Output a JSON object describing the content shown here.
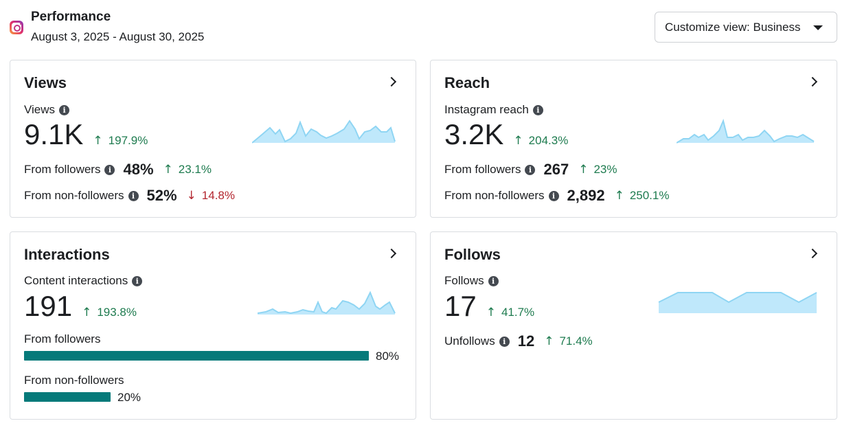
{
  "header": {
    "title": "Performance",
    "date_range": "August 3, 2025 - August 30, 2025",
    "customize_label": "Customize view: Business"
  },
  "colors": {
    "accent_green": "#1e7b4f",
    "accent_red": "#b3262f",
    "bar_teal": "#067a7a",
    "spark_fill": "#bfe8fb",
    "spark_line": "#8fd5f3"
  },
  "cards": {
    "views": {
      "title": "Views",
      "metric_label": "Views",
      "value": "9.1K",
      "change": "197.9%",
      "rows": [
        {
          "label": "From followers",
          "value": "48%",
          "change": "23.1%",
          "direction": "up"
        },
        {
          "label": "From non-followers",
          "value": "52%",
          "change": "14.8%",
          "direction": "down"
        }
      ]
    },
    "reach": {
      "title": "Reach",
      "metric_label": "Instagram reach",
      "value": "3.2K",
      "change": "204.3%",
      "rows": [
        {
          "label": "From followers",
          "value": "267",
          "change": "23%",
          "direction": "up"
        },
        {
          "label": "From non-followers",
          "value": "2,892",
          "change": "250.1%",
          "direction": "up"
        }
      ]
    },
    "interactions": {
      "title": "Interactions",
      "metric_label": "Content interactions",
      "value": "191",
      "change": "193.8%",
      "bars": [
        {
          "label": "From followers",
          "pct": "80%",
          "fraction": 0.8
        },
        {
          "label": "From non-followers",
          "pct": "20%",
          "fraction": 0.2
        }
      ]
    },
    "follows": {
      "title": "Follows",
      "metric_label": "Follows",
      "value": "17",
      "change": "41.7%",
      "rows": [
        {
          "label": "Unfollows",
          "value": "12",
          "change": "71.4%",
          "direction": "up"
        }
      ]
    }
  }
}
